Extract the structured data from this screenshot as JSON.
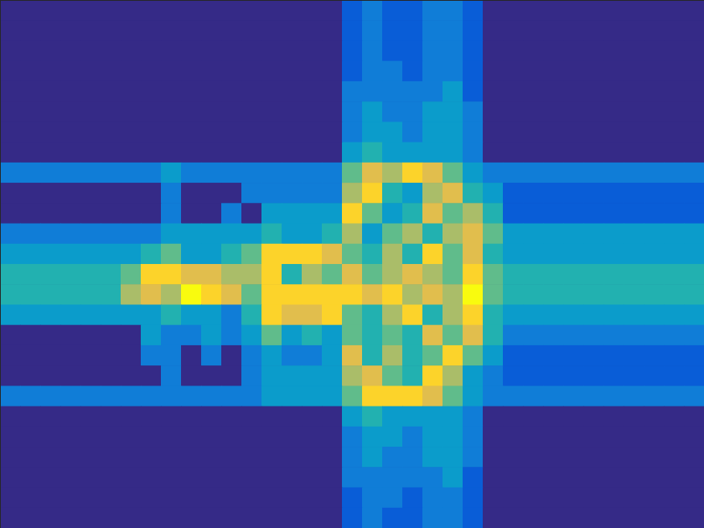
{
  "chart_data": {
    "type": "heatmap",
    "tick_labels": false,
    "xlim": [
      0,
      35
    ],
    "ylim": [
      0,
      26
    ],
    "clim": [
      0,
      9
    ],
    "cells": [
      [
        0,
        0,
        0,
        0,
        0,
        0,
        0,
        0,
        0,
        0,
        0,
        0,
        0,
        0,
        0,
        0,
        0,
        1,
        2,
        1,
        1,
        2,
        2,
        1,
        0,
        0,
        0,
        0,
        0,
        0,
        0,
        0,
        0,
        0,
        0
      ],
      [
        0,
        0,
        0,
        0,
        0,
        0,
        0,
        0,
        0,
        0,
        0,
        0,
        0,
        0,
        0,
        0,
        0,
        1,
        2,
        1,
        1,
        2,
        2,
        1,
        0,
        0,
        0,
        0,
        0,
        0,
        0,
        0,
        0,
        0,
        0
      ],
      [
        0,
        0,
        0,
        0,
        0,
        0,
        0,
        0,
        0,
        0,
        0,
        0,
        0,
        0,
        0,
        0,
        0,
        1,
        2,
        1,
        1,
        2,
        2,
        1,
        0,
        0,
        0,
        0,
        0,
        0,
        0,
        0,
        0,
        0,
        0
      ],
      [
        0,
        0,
        0,
        0,
        0,
        0,
        0,
        0,
        0,
        0,
        0,
        0,
        0,
        0,
        0,
        0,
        0,
        1,
        2,
        2,
        1,
        2,
        2,
        1,
        0,
        0,
        0,
        0,
        0,
        0,
        0,
        0,
        0,
        0,
        0
      ],
      [
        0,
        0,
        0,
        0,
        0,
        0,
        0,
        0,
        0,
        0,
        0,
        0,
        0,
        0,
        0,
        0,
        0,
        2,
        2,
        2,
        2,
        2,
        3,
        1,
        0,
        0,
        0,
        0,
        0,
        0,
        0,
        0,
        0,
        0,
        0
      ],
      [
        0,
        0,
        0,
        0,
        0,
        0,
        0,
        0,
        0,
        0,
        0,
        0,
        0,
        0,
        0,
        0,
        0,
        2,
        3,
        2,
        2,
        3,
        3,
        2,
        0,
        0,
        0,
        0,
        0,
        0,
        0,
        0,
        0,
        0,
        0
      ],
      [
        0,
        0,
        0,
        0,
        0,
        0,
        0,
        0,
        0,
        0,
        0,
        0,
        0,
        0,
        0,
        0,
        0,
        2,
        3,
        3,
        2,
        3,
        3,
        2,
        0,
        0,
        0,
        0,
        0,
        0,
        0,
        0,
        0,
        0,
        0
      ],
      [
        0,
        0,
        0,
        0,
        0,
        0,
        0,
        0,
        0,
        0,
        0,
        0,
        0,
        0,
        0,
        0,
        0,
        3,
        4,
        3,
        3,
        3,
        3,
        2,
        0,
        0,
        0,
        0,
        0,
        0,
        0,
        0,
        0,
        0,
        0
      ],
      [
        2,
        2,
        2,
        2,
        2,
        2,
        2,
        2,
        3,
        2,
        2,
        2,
        2,
        2,
        2,
        2,
        2,
        5,
        7,
        6,
        8,
        7,
        5,
        3,
        2,
        2,
        2,
        2,
        2,
        2,
        2,
        2,
        2,
        2,
        2
      ],
      [
        0,
        0,
        0,
        0,
        0,
        0,
        0,
        0,
        2,
        0,
        0,
        0,
        2,
        2,
        2,
        2,
        2,
        6,
        8,
        4,
        3,
        6,
        7,
        4,
        3,
        1,
        1,
        1,
        1,
        1,
        1,
        1,
        1,
        1,
        1
      ],
      [
        0,
        0,
        0,
        0,
        0,
        0,
        0,
        0,
        2,
        0,
        0,
        2,
        0,
        3,
        3,
        3,
        3,
        8,
        5,
        3,
        4,
        7,
        5,
        6,
        4,
        1,
        1,
        1,
        1,
        1,
        1,
        1,
        1,
        1,
        1
      ],
      [
        2,
        2,
        2,
        2,
        2,
        2,
        2,
        2,
        3,
        3,
        3,
        3,
        3,
        4,
        3,
        3,
        4,
        6,
        3,
        5,
        6,
        4,
        6,
        7,
        5,
        3,
        3,
        3,
        3,
        3,
        3,
        3,
        3,
        3,
        3
      ],
      [
        3,
        3,
        3,
        3,
        3,
        3,
        3,
        4,
        5,
        3,
        3,
        4,
        5,
        8,
        8,
        8,
        7,
        5,
        4,
        6,
        4,
        8,
        5,
        7,
        4,
        3,
        3,
        3,
        3,
        3,
        3,
        3,
        3,
        3,
        3
      ],
      [
        4,
        4,
        4,
        4,
        4,
        4,
        5,
        8,
        8,
        7,
        7,
        6,
        6,
        8,
        4,
        6,
        5,
        7,
        5,
        6,
        7,
        6,
        5,
        8,
        5,
        4,
        4,
        4,
        4,
        4,
        4,
        4,
        4,
        4,
        4
      ],
      [
        4,
        4,
        4,
        4,
        4,
        4,
        6,
        7,
        6,
        9,
        8,
        7,
        5,
        8,
        8,
        8,
        8,
        8,
        7,
        8,
        6,
        7,
        6,
        9,
        5,
        4,
        4,
        4,
        4,
        4,
        4,
        4,
        4,
        4,
        4
      ],
      [
        3,
        3,
        3,
        3,
        3,
        3,
        3,
        3,
        4,
        3,
        3,
        2,
        4,
        8,
        7,
        7,
        8,
        5,
        4,
        6,
        8,
        4,
        6,
        8,
        4,
        3,
        3,
        3,
        3,
        3,
        3,
        3,
        3,
        3,
        3
      ],
      [
        0,
        0,
        0,
        0,
        0,
        0,
        0,
        3,
        2,
        2,
        3,
        2,
        3,
        5,
        3,
        4,
        3,
        5,
        4,
        5,
        4,
        7,
        5,
        7,
        4,
        2,
        2,
        2,
        2,
        2,
        2,
        2,
        2,
        2,
        2
      ],
      [
        0,
        0,
        0,
        0,
        0,
        0,
        0,
        2,
        2,
        0,
        2,
        0,
        2,
        3,
        2,
        2,
        3,
        7,
        4,
        6,
        4,
        5,
        8,
        5,
        3,
        1,
        1,
        1,
        1,
        1,
        1,
        1,
        1,
        1,
        1
      ],
      [
        0,
        0,
        0,
        0,
        0,
        0,
        0,
        0,
        2,
        0,
        0,
        0,
        2,
        3,
        3,
        3,
        3,
        6,
        7,
        5,
        4,
        8,
        6,
        3,
        2,
        1,
        1,
        1,
        1,
        1,
        1,
        1,
        1,
        1,
        1
      ],
      [
        2,
        2,
        2,
        2,
        2,
        2,
        2,
        2,
        2,
        2,
        2,
        2,
        2,
        3,
        3,
        3,
        3,
        5,
        8,
        8,
        8,
        7,
        5,
        3,
        2,
        2,
        2,
        2,
        2,
        2,
        2,
        2,
        2,
        2,
        2
      ],
      [
        0,
        0,
        0,
        0,
        0,
        0,
        0,
        0,
        0,
        0,
        0,
        0,
        0,
        0,
        0,
        0,
        0,
        3,
        4,
        3,
        3,
        3,
        3,
        2,
        0,
        0,
        0,
        0,
        0,
        0,
        0,
        0,
        0,
        0,
        0
      ],
      [
        0,
        0,
        0,
        0,
        0,
        0,
        0,
        0,
        0,
        0,
        0,
        0,
        0,
        0,
        0,
        0,
        0,
        2,
        3,
        3,
        2,
        3,
        3,
        2,
        0,
        0,
        0,
        0,
        0,
        0,
        0,
        0,
        0,
        0,
        0
      ],
      [
        0,
        0,
        0,
        0,
        0,
        0,
        0,
        0,
        0,
        0,
        0,
        0,
        0,
        0,
        0,
        0,
        0,
        2,
        3,
        2,
        2,
        3,
        3,
        2,
        0,
        0,
        0,
        0,
        0,
        0,
        0,
        0,
        0,
        0,
        0
      ],
      [
        0,
        0,
        0,
        0,
        0,
        0,
        0,
        0,
        0,
        0,
        0,
        0,
        0,
        0,
        0,
        0,
        0,
        2,
        2,
        2,
        2,
        2,
        3,
        1,
        0,
        0,
        0,
        0,
        0,
        0,
        0,
        0,
        0,
        0,
        0
      ],
      [
        0,
        0,
        0,
        0,
        0,
        0,
        0,
        0,
        0,
        0,
        0,
        0,
        0,
        0,
        0,
        0,
        0,
        1,
        2,
        2,
        1,
        2,
        2,
        1,
        0,
        0,
        0,
        0,
        0,
        0,
        0,
        0,
        0,
        0,
        0
      ],
      [
        0,
        0,
        0,
        0,
        0,
        0,
        0,
        0,
        0,
        0,
        0,
        0,
        0,
        0,
        0,
        0,
        0,
        1,
        2,
        1,
        1,
        2,
        2,
        1,
        0,
        0,
        0,
        0,
        0,
        0,
        0,
        0,
        0,
        0,
        0
      ]
    ]
  }
}
